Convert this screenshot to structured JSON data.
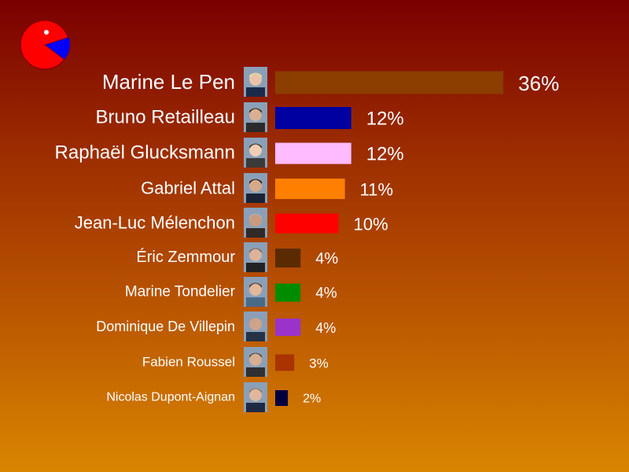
{
  "logo": {
    "icon": "pacman-pie-icon",
    "colors": [
      "#ff0000",
      "#0000ff"
    ]
  },
  "chart_data": {
    "type": "bar",
    "orientation": "horizontal",
    "categories": [
      "Marine Le Pen",
      "Bruno Retailleau",
      "Raphaël Glucksmann",
      "Gabriel Attal",
      "Jean-Luc Mélenchon",
      "Éric Zemmour",
      "Marine Tondelier",
      "Dominique De Villepin",
      "Fabien Roussel",
      "Nicolas Dupont-Aignan"
    ],
    "values": [
      36,
      12,
      12,
      11,
      10,
      4,
      4,
      4,
      3,
      2
    ],
    "labels": [
      "36%",
      "12%",
      "12%",
      "11%",
      "10%",
      "4%",
      "4%",
      "4%",
      "3%",
      "2%"
    ],
    "colors": [
      "#8b3e00",
      "#0000a0",
      "#ffbbff",
      "#ff7f00",
      "#ff0000",
      "#5a2a00",
      "#008c00",
      "#9933cc",
      "#aa3300",
      "#000040"
    ],
    "icons": [
      "portrait-icon",
      "portrait-icon",
      "portrait-icon",
      "portrait-icon",
      "portrait-icon",
      "portrait-icon",
      "portrait-icon",
      "portrait-icon",
      "portrait-icon",
      "portrait-icon"
    ],
    "title": "",
    "xlabel": "",
    "ylabel": "",
    "grid": false,
    "legend": "none"
  }
}
